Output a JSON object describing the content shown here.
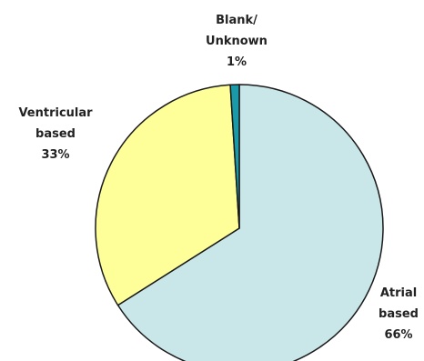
{
  "chart_data": {
    "type": "pie",
    "title": "",
    "slices": [
      {
        "name": "Atrial based",
        "label_lines": [
          "Atrial",
          "based"
        ],
        "value": 66,
        "value_label": "66%",
        "color": "#c9e6e8"
      },
      {
        "name": "Ventricular based",
        "label_lines": [
          "Ventricular",
          "based"
        ],
        "value": 33,
        "value_label": "33%",
        "color": "#ffff99"
      },
      {
        "name": "Blank/ Unknown",
        "label_lines": [
          "Blank/",
          "Unknown"
        ],
        "value": 1,
        "value_label": "1%",
        "color": "#1a9aa8"
      }
    ],
    "legend": "none",
    "start": "12 o'clock",
    "direction": "clockwise"
  }
}
